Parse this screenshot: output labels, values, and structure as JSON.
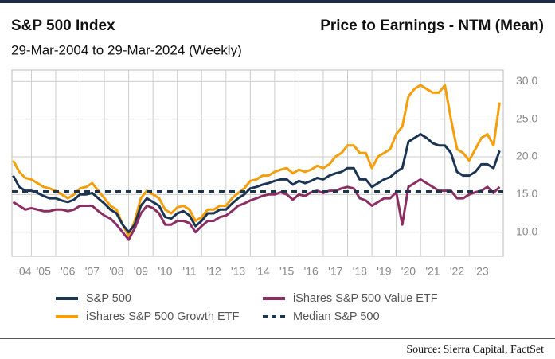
{
  "chart_data": {
    "type": "line",
    "title": "S&P 500 Index",
    "right_title": "Price to Earnings - NTM (Mean)",
    "subtitle": "29-Mar-2004 to 29-Mar-2024 (Weekly)",
    "source": "Source: Sierra Capital, FactSet",
    "x": [
      2004.25,
      2004.5,
      2004.75,
      2005,
      2005.25,
      2005.5,
      2005.75,
      2006,
      2006.25,
      2006.5,
      2006.75,
      2007,
      2007.25,
      2007.5,
      2007.75,
      2008,
      2008.25,
      2008.5,
      2008.75,
      2009,
      2009.25,
      2009.5,
      2009.75,
      2010,
      2010.25,
      2010.5,
      2010.75,
      2011,
      2011.25,
      2011.5,
      2011.75,
      2012,
      2012.25,
      2012.5,
      2012.75,
      2013,
      2013.25,
      2013.5,
      2013.75,
      2014,
      2014.25,
      2014.5,
      2014.75,
      2015,
      2015.25,
      2015.5,
      2015.75,
      2016,
      2016.25,
      2016.5,
      2016.75,
      2017,
      2017.25,
      2017.5,
      2017.75,
      2018,
      2018.25,
      2018.5,
      2018.75,
      2019,
      2019.25,
      2019.5,
      2019.75,
      2020,
      2020.25,
      2020.5,
      2020.75,
      2021,
      2021.25,
      2021.5,
      2021.75,
      2022,
      2022.25,
      2022.5,
      2022.75,
      2023,
      2023.25,
      2023.5,
      2023.75,
      2024,
      2024.25
    ],
    "series": [
      {
        "name": "S&P 500",
        "color": "#1c3553",
        "values": [
          17.5,
          16,
          15.5,
          15.5,
          15.2,
          14.8,
          14.5,
          14.5,
          14.2,
          14,
          14.3,
          15,
          15,
          15.2,
          14.5,
          13.8,
          13,
          12.5,
          11,
          10,
          11,
          13.5,
          14.5,
          14,
          13.5,
          12,
          11.8,
          12.5,
          12.8,
          12.2,
          10.8,
          11.5,
          12.5,
          12.5,
          13,
          13,
          13.8,
          14.5,
          15,
          15.8,
          16,
          16.3,
          16.5,
          16.8,
          17,
          17,
          16.3,
          16.8,
          16.5,
          16.8,
          17.2,
          17,
          17.5,
          17.8,
          18,
          18.5,
          18.5,
          17,
          17,
          16,
          16.5,
          17,
          17.3,
          18,
          18.5,
          22,
          22.5,
          23,
          22.5,
          21.8,
          21.5,
          21.5,
          20.5,
          18,
          17.5,
          17.5,
          18,
          19,
          19,
          18.5,
          20.8
        ]
      },
      {
        "name": "iShares S&P 500 Value ETF",
        "color": "#8b2f63",
        "values": [
          14,
          13.5,
          13,
          13.2,
          13,
          12.8,
          12.8,
          13,
          13,
          12.8,
          13,
          13.5,
          13.5,
          13.5,
          12.8,
          12.2,
          11.8,
          11,
          10,
          9,
          10.5,
          12.5,
          13.5,
          13.2,
          12.5,
          11,
          11,
          11.5,
          11.5,
          11.2,
          10,
          10.8,
          11.5,
          11.5,
          12,
          12.2,
          12.8,
          13.5,
          13.8,
          14.2,
          14.5,
          14.8,
          15,
          15,
          15.3,
          15,
          14.3,
          15,
          14.8,
          15.3,
          15.5,
          15.2,
          15.5,
          15.5,
          15.8,
          16,
          15.8,
          14.5,
          14.2,
          13.5,
          14,
          14.5,
          14.5,
          15.3,
          11,
          16,
          16.5,
          17,
          16.5,
          16,
          15.5,
          15.5,
          15.5,
          14.5,
          14.5,
          15,
          15.3,
          15.5,
          16,
          15.2,
          16
        ]
      },
      {
        "name": "iShares S&P 500 Growth ETF",
        "color": "#f59e0b",
        "values": [
          19.5,
          18,
          17.2,
          17,
          16.5,
          16,
          15.8,
          15.5,
          15,
          14.5,
          15,
          15.8,
          16,
          16.5,
          15.5,
          14.5,
          13.5,
          13,
          11,
          9.5,
          11.5,
          14.5,
          15.5,
          15,
          14.5,
          13,
          12.5,
          13.3,
          13.5,
          13,
          11.5,
          12,
          13,
          13,
          13.5,
          13.5,
          14.5,
          15.2,
          15.8,
          16.8,
          17,
          17.5,
          17.5,
          18,
          18.3,
          18.5,
          17.8,
          18.3,
          18,
          18.3,
          18.8,
          18.5,
          19,
          20,
          20.5,
          21.5,
          21.5,
          20.5,
          20.5,
          18.5,
          20,
          20.5,
          21,
          23,
          24,
          28,
          29,
          29.5,
          29,
          28.5,
          28.5,
          29.5,
          25,
          21,
          20.5,
          19.5,
          21,
          22.5,
          23,
          21.5,
          27.2
        ]
      },
      {
        "name": "Median S&P 500",
        "color": "#1c3553",
        "value": 15.4,
        "style": "dashed"
      }
    ],
    "xlim": [
      2004.2,
      2024.4
    ],
    "xticks": [
      {
        "value": 2004,
        "label": "'04"
      },
      {
        "value": 2005,
        "label": "'05"
      },
      {
        "value": 2006,
        "label": "'06"
      },
      {
        "value": 2007,
        "label": "'07"
      },
      {
        "value": 2008,
        "label": "'08"
      },
      {
        "value": 2009,
        "label": "'09"
      },
      {
        "value": 2010,
        "label": "'10"
      },
      {
        "value": 2011,
        "label": "'11"
      },
      {
        "value": 2012,
        "label": "'12"
      },
      {
        "value": 2013,
        "label": "'13"
      },
      {
        "value": 2014,
        "label": "'14"
      },
      {
        "value": 2015,
        "label": "'15"
      },
      {
        "value": 2016,
        "label": "'16"
      },
      {
        "value": 2017,
        "label": "'17"
      },
      {
        "value": 2018,
        "label": "'18"
      },
      {
        "value": 2019,
        "label": "'19"
      },
      {
        "value": 2020,
        "label": "'20"
      },
      {
        "value": 2021,
        "label": "'21"
      },
      {
        "value": 2022,
        "label": "'22"
      },
      {
        "value": 2023,
        "label": "'23"
      }
    ],
    "ylim": [
      6.8,
      31.5
    ],
    "yticks": [
      {
        "value": 10,
        "label": "10.0"
      },
      {
        "value": 15,
        "label": "15.0"
      },
      {
        "value": 20,
        "label": "20.0"
      },
      {
        "value": 25,
        "label": "25.0"
      },
      {
        "value": 30,
        "label": "30.0"
      }
    ],
    "grid": true
  }
}
